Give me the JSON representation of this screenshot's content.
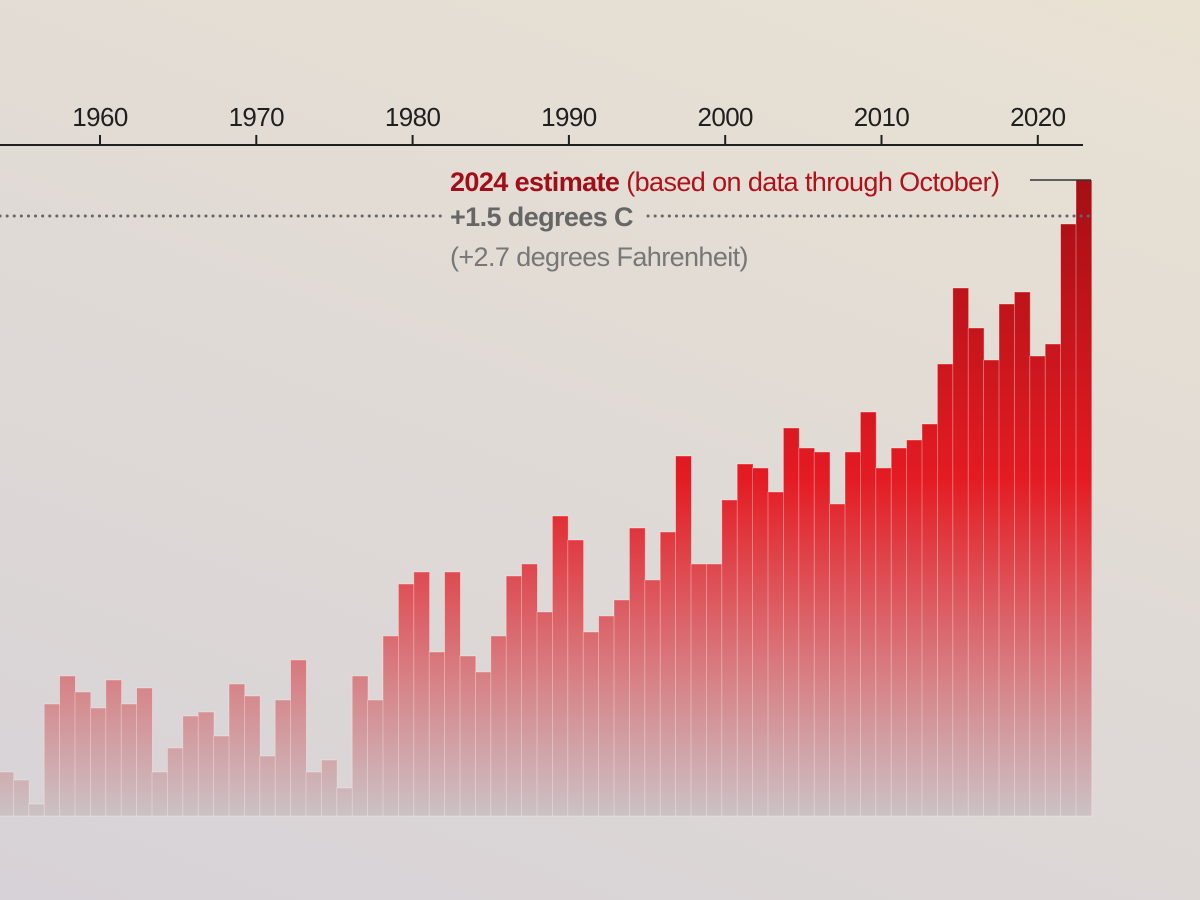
{
  "chart_data": {
    "type": "bar",
    "title": "",
    "xlabel": "",
    "ylabel": "",
    "x_tick_labels": [
      "1960",
      "1970",
      "1980",
      "1990",
      "2000",
      "2010",
      "2020"
    ],
    "x_ticks": [
      1960,
      1970,
      1980,
      1990,
      2000,
      2010,
      2020
    ],
    "ylim": [
      0,
      1.6
    ],
    "unit": "degrees C",
    "grid": false,
    "categories": [
      1954,
      1955,
      1956,
      1957,
      1958,
      1959,
      1960,
      1961,
      1962,
      1963,
      1964,
      1965,
      1966,
      1967,
      1968,
      1969,
      1970,
      1971,
      1972,
      1973,
      1974,
      1975,
      1976,
      1977,
      1978,
      1979,
      1980,
      1981,
      1982,
      1983,
      1984,
      1985,
      1986,
      1987,
      1988,
      1989,
      1990,
      1991,
      1992,
      1993,
      1994,
      1995,
      1996,
      1997,
      1998,
      1999,
      2000,
      2001,
      2002,
      2003,
      2004,
      2005,
      2006,
      2007,
      2008,
      2009,
      2010,
      2011,
      2012,
      2013,
      2014,
      2015,
      2016,
      2017,
      2018,
      2019,
      2020,
      2021,
      2022,
      2023,
      2024
    ],
    "values": [
      0.11,
      0.09,
      0.03,
      0.28,
      0.35,
      0.31,
      0.27,
      0.34,
      0.28,
      0.32,
      0.11,
      0.17,
      0.25,
      0.26,
      0.2,
      0.33,
      0.3,
      0.15,
      0.29,
      0.39,
      0.11,
      0.14,
      0.07,
      0.35,
      0.29,
      0.45,
      0.58,
      0.61,
      0.41,
      0.61,
      0.4,
      0.36,
      0.45,
      0.6,
      0.63,
      0.51,
      0.75,
      0.69,
      0.46,
      0.5,
      0.54,
      0.72,
      0.59,
      0.71,
      0.9,
      0.63,
      0.63,
      0.79,
      0.88,
      0.87,
      0.81,
      0.97,
      0.92,
      0.91,
      0.78,
      0.91,
      1.01,
      0.87,
      0.92,
      0.94,
      0.98,
      1.13,
      1.32,
      1.22,
      1.14,
      1.28,
      1.31,
      1.15,
      1.18,
      1.48,
      1.59
    ],
    "reference_line": {
      "value": 1.5,
      "style": "dotted"
    },
    "annotations": {
      "estimate_bold": "2024 estimate",
      "estimate_note": "(based on data through October)",
      "threshold_bold": "+1.5 degrees C",
      "threshold_note": "(+2.7 degrees Fahrenheit)"
    },
    "colors": {
      "bar_top": "#a50f15",
      "bar_mid": "#e41b23",
      "bar_low": "#d27f82",
      "bar_base": "#cdc2c5",
      "estimate_text": "#b0111b",
      "threshold_text": "#666666",
      "axis": "#1f1f1f"
    }
  }
}
